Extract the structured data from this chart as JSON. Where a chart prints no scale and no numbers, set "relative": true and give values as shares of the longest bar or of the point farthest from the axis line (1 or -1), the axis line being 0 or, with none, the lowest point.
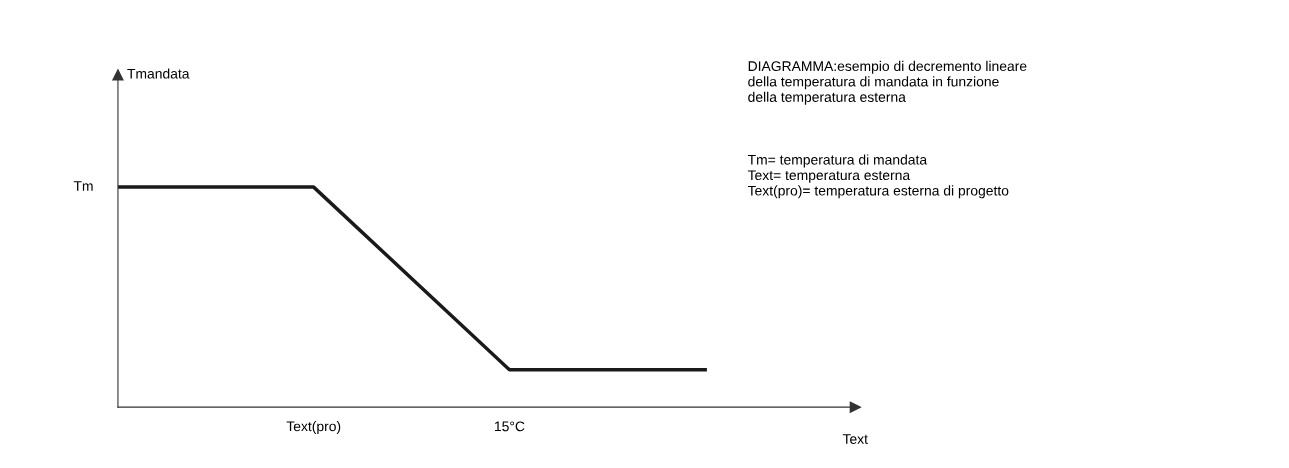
{
  "chart_data": {
    "type": "line",
    "relative": true,
    "categories": [
      null,
      "Text(pro)",
      "15°C",
      null
    ],
    "series": [
      {
        "color": "#1a1a1a",
        "values": [
          1,
          1,
          0.17,
          0.17
        ]
      }
    ],
    "xlabel": "Text",
    "marker": "none",
    "line_style": "solid",
    "grid": false,
    "legend": false,
    "annotations": [
      "Tmandata",
      "Tm",
      "DIAGRAMMA:esempio di decremento lineare\ndella temperatura di mandata in funzione\ndella temperatura esterna",
      "Tm= temperatura di mandata\nText= temperatura esterna\nText(pro)= temperatura esterna di progetto"
    ]
  }
}
